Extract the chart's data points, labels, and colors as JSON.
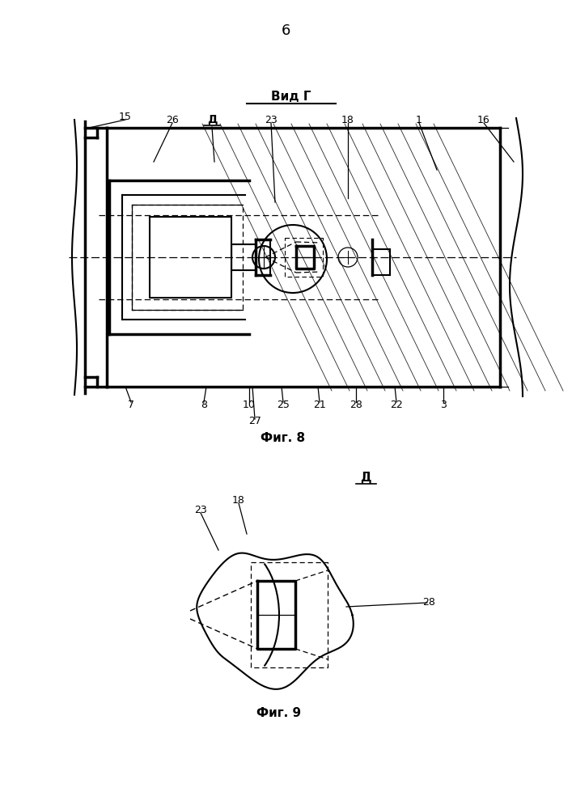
{
  "page_number": "6",
  "fig8_title": "Вид Г",
  "fig8_label": "Фиг. 8",
  "fig9_label": "Фиг. 9",
  "bg_color": "#ffffff",
  "line_color": "#000000"
}
